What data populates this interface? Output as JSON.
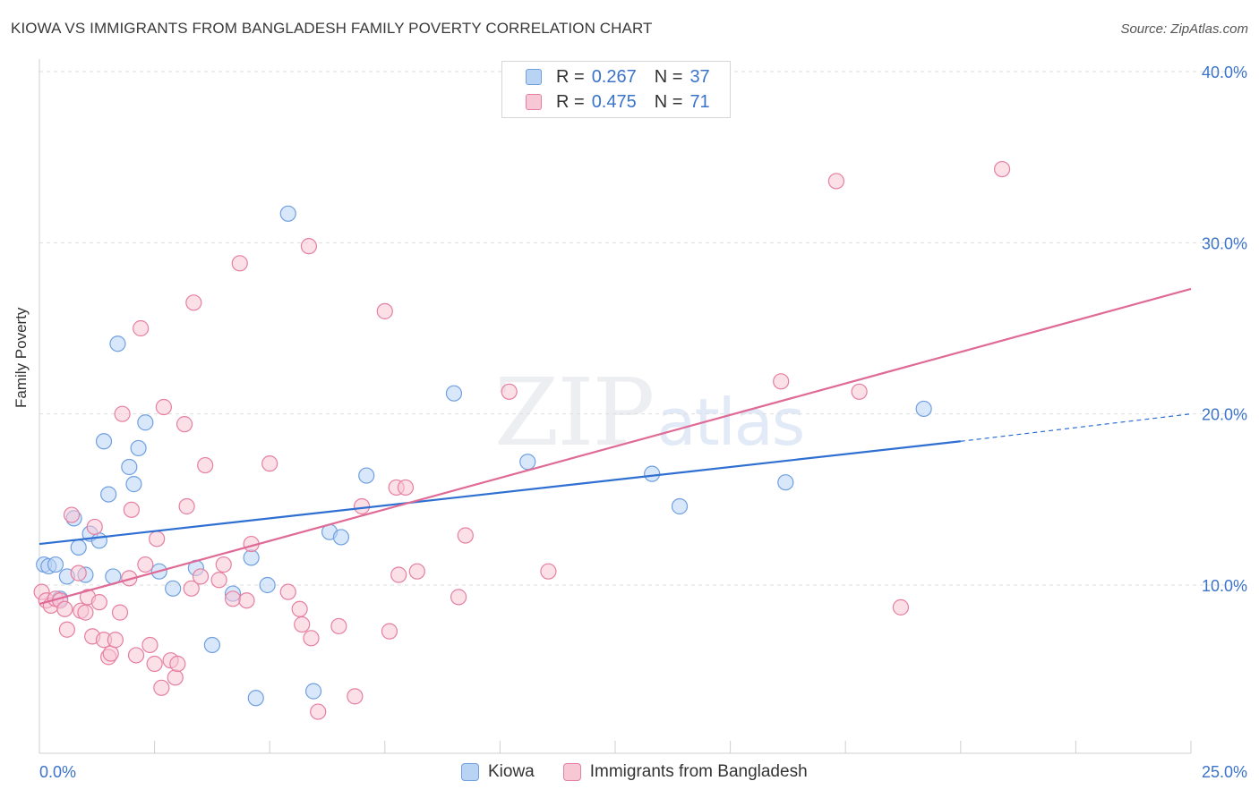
{
  "title": "KIOWA VS IMMIGRANTS FROM BANGLADESH FAMILY POVERTY CORRELATION CHART",
  "source": "Source: ZipAtlas.com",
  "watermark": {
    "zip": "ZIP",
    "atlas": "atlas"
  },
  "colors": {
    "kiowa": "#6fa0e0",
    "kiowa_fill": "#b9d3f5",
    "bangladesh": "#e67fa1",
    "bangladesh_fill": "#f8c7d6",
    "kiowa_line": "#2e6fd1",
    "bangladesh_line": "#e06a96",
    "tick_text": "#3a73c9"
  },
  "legend": {
    "rows": [
      {
        "r_label": "R =",
        "r_value": "0.267",
        "n_label": "N =",
        "n_value": "37"
      },
      {
        "r_label": "R =",
        "r_value": "0.475",
        "n_label": "N =",
        "n_value": "71"
      }
    ]
  },
  "bottom_legend": {
    "kiowa": "Kiowa",
    "bangladesh": "Immigrants from Bangladesh"
  },
  "chart_data": {
    "type": "scatter",
    "title": "KIOWA VS IMMIGRANTS FROM BANGLADESH FAMILY POVERTY CORRELATION CHART",
    "xlabel": "",
    "ylabel": "Family Poverty",
    "xlim": [
      0,
      25
    ],
    "ylim": [
      0,
      42
    ],
    "x_tick_labels": [
      "0.0%",
      "25.0%"
    ],
    "y_ticks": [
      10,
      20,
      30,
      40
    ],
    "y_tick_labels": [
      "10.0%",
      "20.0%",
      "30.0%",
      "40.0%"
    ],
    "series": [
      {
        "name": "Kiowa",
        "r": 0.267,
        "n": 37,
        "trend": {
          "x0": 0,
          "y0": 12.4,
          "x1": 20,
          "y1": 18.4,
          "dashed_to_x": 25,
          "dashed_to_y": 20.0
        },
        "points": [
          [
            0.1,
            11.2
          ],
          [
            0.2,
            11.1
          ],
          [
            0.35,
            11.2
          ],
          [
            0.45,
            9.2
          ],
          [
            0.6,
            10.5
          ],
          [
            0.75,
            13.9
          ],
          [
            0.85,
            12.2
          ],
          [
            1.0,
            10.6
          ],
          [
            1.1,
            13.0
          ],
          [
            1.3,
            12.6
          ],
          [
            1.4,
            18.4
          ],
          [
            1.5,
            15.3
          ],
          [
            1.6,
            10.5
          ],
          [
            1.7,
            24.1
          ],
          [
            1.95,
            16.9
          ],
          [
            2.05,
            15.9
          ],
          [
            2.15,
            18.0
          ],
          [
            2.3,
            19.5
          ],
          [
            2.6,
            10.8
          ],
          [
            2.9,
            9.8
          ],
          [
            3.4,
            11.0
          ],
          [
            3.75,
            6.5
          ],
          [
            4.2,
            9.5
          ],
          [
            4.6,
            11.6
          ],
          [
            4.7,
            3.4
          ],
          [
            4.95,
            10.0
          ],
          [
            5.4,
            31.7
          ],
          [
            5.95,
            3.8
          ],
          [
            6.3,
            13.1
          ],
          [
            6.55,
            12.8
          ],
          [
            7.1,
            16.4
          ],
          [
            9.0,
            21.2
          ],
          [
            10.6,
            17.2
          ],
          [
            13.3,
            16.5
          ],
          [
            13.9,
            14.6
          ],
          [
            16.2,
            16.0
          ],
          [
            19.2,
            20.3
          ]
        ]
      },
      {
        "name": "Immigrants from Bangladesh",
        "r": 0.475,
        "n": 71,
        "trend": {
          "x0": 0,
          "y0": 8.9,
          "x1": 25,
          "y1": 27.3
        },
        "points": [
          [
            0.05,
            9.6
          ],
          [
            0.15,
            9.1
          ],
          [
            0.25,
            8.8
          ],
          [
            0.35,
            9.2
          ],
          [
            0.45,
            9.1
          ],
          [
            0.55,
            8.6
          ],
          [
            0.6,
            7.4
          ],
          [
            0.7,
            14.1
          ],
          [
            0.85,
            10.7
          ],
          [
            0.9,
            8.5
          ],
          [
            1.0,
            8.4
          ],
          [
            1.05,
            9.3
          ],
          [
            1.15,
            7.0
          ],
          [
            1.2,
            13.4
          ],
          [
            1.3,
            9.0
          ],
          [
            1.4,
            6.8
          ],
          [
            1.5,
            5.8
          ],
          [
            1.55,
            6.0
          ],
          [
            1.65,
            6.8
          ],
          [
            1.75,
            8.4
          ],
          [
            1.8,
            20.0
          ],
          [
            1.95,
            10.4
          ],
          [
            2.0,
            14.4
          ],
          [
            2.1,
            5.9
          ],
          [
            2.2,
            25.0
          ],
          [
            2.3,
            11.2
          ],
          [
            2.4,
            6.5
          ],
          [
            2.5,
            5.4
          ],
          [
            2.55,
            12.7
          ],
          [
            2.65,
            4.0
          ],
          [
            2.7,
            20.4
          ],
          [
            2.85,
            5.6
          ],
          [
            2.95,
            4.6
          ],
          [
            3.0,
            5.4
          ],
          [
            3.15,
            19.4
          ],
          [
            3.2,
            14.6
          ],
          [
            3.3,
            9.8
          ],
          [
            3.35,
            26.5
          ],
          [
            3.5,
            10.5
          ],
          [
            3.6,
            17.0
          ],
          [
            3.9,
            10.3
          ],
          [
            4.0,
            11.2
          ],
          [
            4.2,
            9.2
          ],
          [
            4.35,
            28.8
          ],
          [
            4.5,
            9.1
          ],
          [
            4.6,
            12.4
          ],
          [
            5.0,
            17.1
          ],
          [
            5.4,
            9.6
          ],
          [
            5.65,
            8.6
          ],
          [
            5.7,
            7.7
          ],
          [
            5.85,
            29.8
          ],
          [
            5.9,
            6.9
          ],
          [
            6.05,
            2.6
          ],
          [
            6.5,
            7.6
          ],
          [
            6.85,
            3.5
          ],
          [
            7.0,
            14.6
          ],
          [
            7.5,
            26.0
          ],
          [
            7.6,
            7.3
          ],
          [
            7.75,
            15.7
          ],
          [
            7.8,
            10.6
          ],
          [
            7.95,
            15.7
          ],
          [
            8.2,
            10.8
          ],
          [
            9.1,
            9.3
          ],
          [
            9.25,
            12.9
          ],
          [
            10.2,
            21.3
          ],
          [
            11.05,
            10.8
          ],
          [
            17.3,
            33.6
          ],
          [
            18.7,
            8.7
          ],
          [
            20.9,
            34.3
          ],
          [
            17.8,
            21.3
          ],
          [
            16.1,
            21.9
          ]
        ]
      }
    ]
  }
}
